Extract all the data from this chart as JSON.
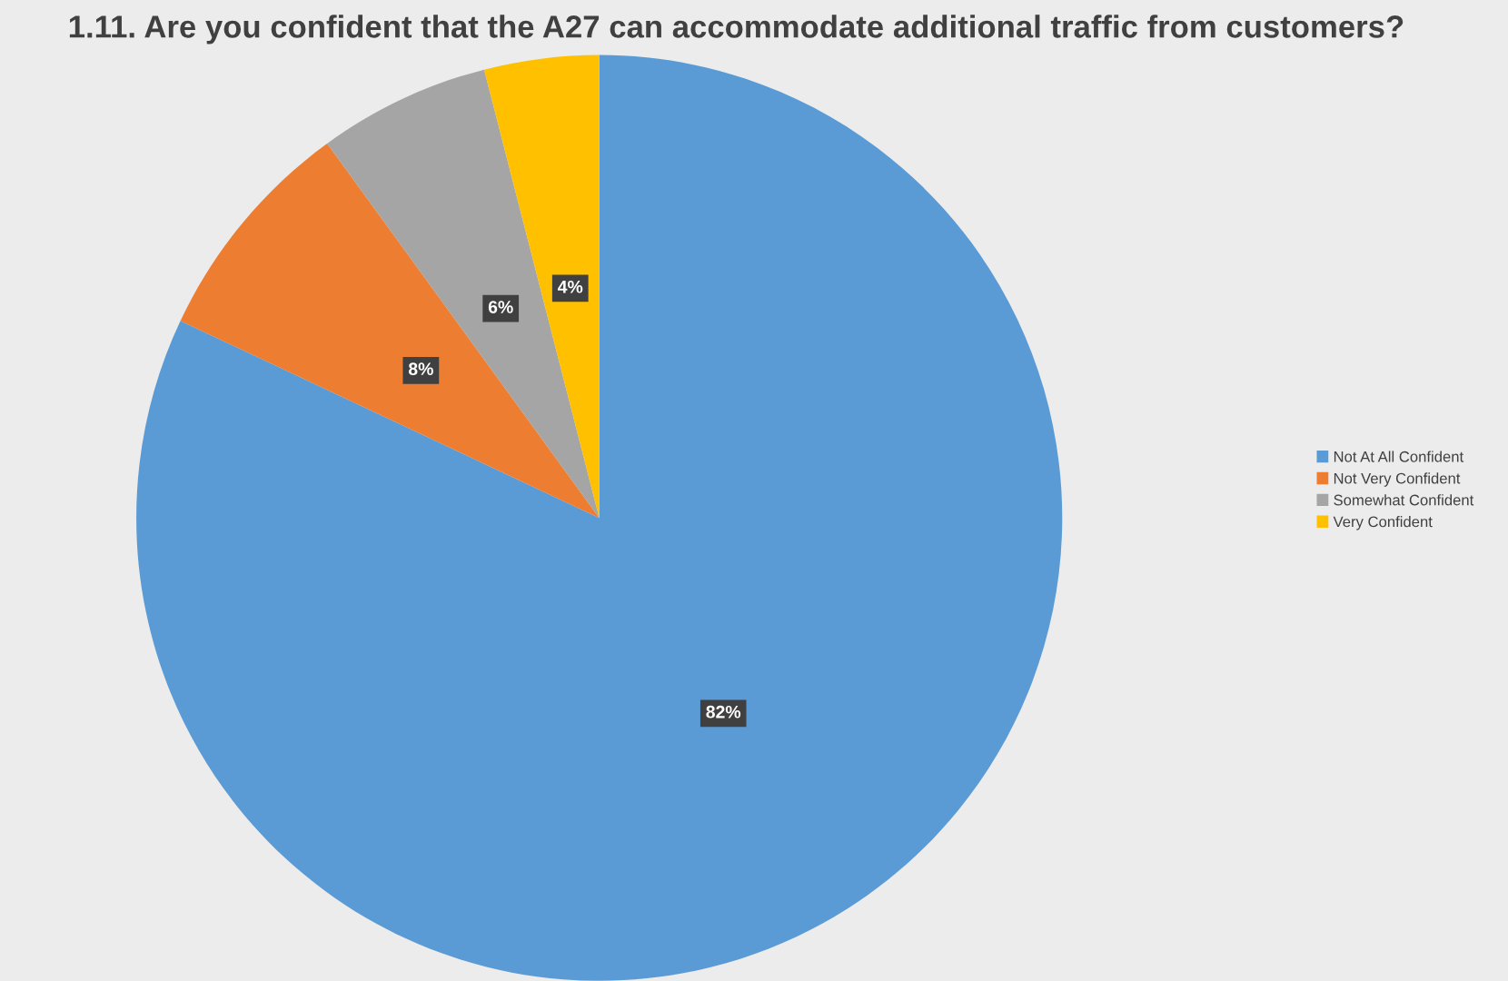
{
  "chart_data": {
    "type": "pie",
    "title": "1.11. Are you confident that the A27 can accommodate additional traffic from customers?",
    "categories": [
      "Not At All Confident",
      "Not Very Confident",
      "Somewhat Confident",
      "Very Confident"
    ],
    "values": [
      82,
      8,
      6,
      4
    ],
    "colors": [
      "#5b9bd5",
      "#ed7d31",
      "#a5a5a5",
      "#ffc000"
    ],
    "value_labels": [
      "82%",
      "8%",
      "6%",
      "4%"
    ],
    "legend": "right"
  }
}
